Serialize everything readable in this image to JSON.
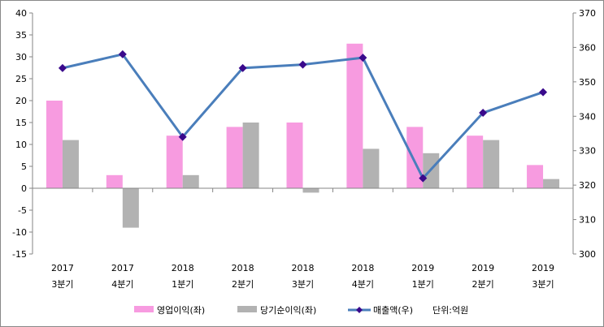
{
  "chart_data": {
    "type": "bar+line",
    "categories": [
      {
        "year": "2017",
        "quarter": "3분기"
      },
      {
        "year": "2017",
        "quarter": "4분기"
      },
      {
        "year": "2018",
        "quarter": "1분기"
      },
      {
        "year": "2018",
        "quarter": "2분기"
      },
      {
        "year": "2018",
        "quarter": "3분기"
      },
      {
        "year": "2018",
        "quarter": "4분기"
      },
      {
        "year": "2019",
        "quarter": "1분기"
      },
      {
        "year": "2019",
        "quarter": "2분기"
      },
      {
        "year": "2019",
        "quarter": "3분기"
      }
    ],
    "series": [
      {
        "name": "영업이익(좌)",
        "type": "bar",
        "axis": "left",
        "color": "#f79be0",
        "values": [
          20,
          3,
          12,
          14,
          15,
          33,
          14,
          12,
          5.3
        ]
      },
      {
        "name": "당기순이익(좌)",
        "type": "bar",
        "axis": "left",
        "color": "#b2b2b2",
        "values": [
          11,
          -9,
          3,
          15,
          -1,
          9,
          8,
          11,
          2.1
        ]
      },
      {
        "name": "매출액(우)",
        "type": "line",
        "axis": "right",
        "color": "#4a7ebb",
        "marker_color": "#3a0a8c",
        "values": [
          354,
          358,
          334,
          354,
          355,
          357,
          322,
          341,
          347
        ]
      }
    ],
    "left_axis": {
      "min": -15,
      "max": 40,
      "step": 5,
      "ticks": [
        "-15",
        "-10",
        "-5",
        "0",
        "5",
        "10",
        "15",
        "20",
        "25",
        "30",
        "35",
        "40"
      ]
    },
    "right_axis": {
      "min": 300,
      "max": 370,
      "step": 10,
      "ticks": [
        "300",
        "310",
        "320",
        "330",
        "340",
        "350",
        "360",
        "370"
      ]
    },
    "unit_note": "단위:억원",
    "legend_position": "bottom",
    "grid": false
  }
}
